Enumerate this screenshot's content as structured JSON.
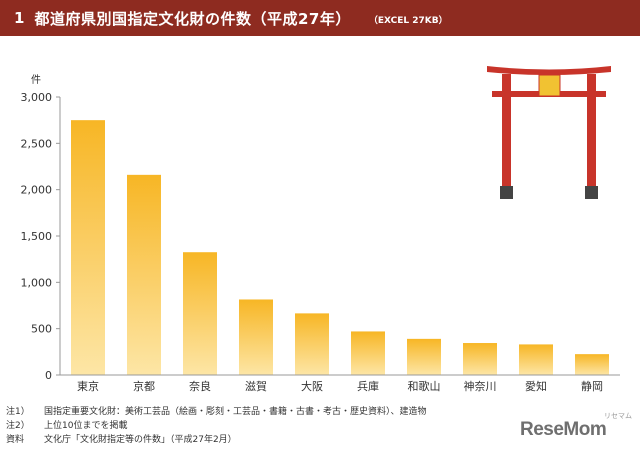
{
  "header": {
    "number": "1",
    "title": "都道府県別国指定文化財の件数（平成27年）",
    "excel": "（EXCEL 27KB）"
  },
  "chart_data": {
    "type": "bar",
    "unit_label": "件",
    "categories": [
      "東京",
      "京都",
      "奈良",
      "滋賀",
      "大阪",
      "兵庫",
      "和歌山",
      "神奈川",
      "愛知",
      "静岡"
    ],
    "values": [
      2750,
      2160,
      1325,
      815,
      665,
      470,
      390,
      345,
      330,
      225
    ],
    "yticks": [
      "0",
      "500",
      "1,000",
      "1,500",
      "2,000",
      "2,500",
      "3,000"
    ],
    "ylim": [
      0,
      3000
    ],
    "grid": false,
    "bar_color_top": "#f7b625",
    "bar_color_bottom": "#fde6a6"
  },
  "notes": [
    {
      "label": "注1）",
      "text": "国指定重要文化財：美術工芸品（絵画・彫刻・工芸品・書籍・古書・考古・歴史資料）、建造物"
    },
    {
      "label": "注2）",
      "text": "上位10位までを掲載"
    },
    {
      "label": "資料",
      "text": "文化庁「文化財指定等の件数」（平成27年2月）"
    }
  ],
  "watermark": {
    "logo": "ReseMom",
    "sub": "リセマム"
  },
  "colors": {
    "header_bg": "#8e2b20",
    "torii_red": "#c8342a",
    "torii_plaque": "#f1c232",
    "torii_base": "#444444"
  }
}
